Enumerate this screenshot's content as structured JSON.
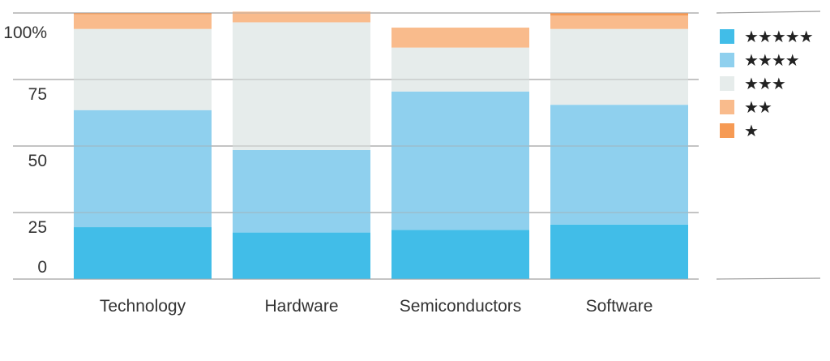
{
  "chart_data": {
    "type": "bar",
    "stacked": true,
    "categories": [
      "Technology",
      "Hardware",
      "Semiconductors",
      "Software"
    ],
    "y_ticks": [
      "0",
      "25",
      "50",
      "75",
      "100%"
    ],
    "ylim": [
      0,
      100
    ],
    "grid": true,
    "legend_position": "right",
    "series": [
      {
        "name": "★★★★★",
        "color": "#41BDE8",
        "values": [
          19.5,
          17.5,
          18.5,
          20.5
        ]
      },
      {
        "name": "★★★★",
        "color": "#8FD0EE",
        "values": [
          44,
          31,
          52,
          45
        ]
      },
      {
        "name": "★★★",
        "color": "#E6ECEB",
        "values": [
          30.5,
          48,
          16.5,
          28.5
        ]
      },
      {
        "name": "★★",
        "color": "#F9BB8C",
        "values": [
          5.5,
          4,
          7.5,
          5
        ]
      },
      {
        "name": "★",
        "color": "#F69A54",
        "values": [
          0.5,
          0,
          0,
          1
        ]
      }
    ]
  }
}
